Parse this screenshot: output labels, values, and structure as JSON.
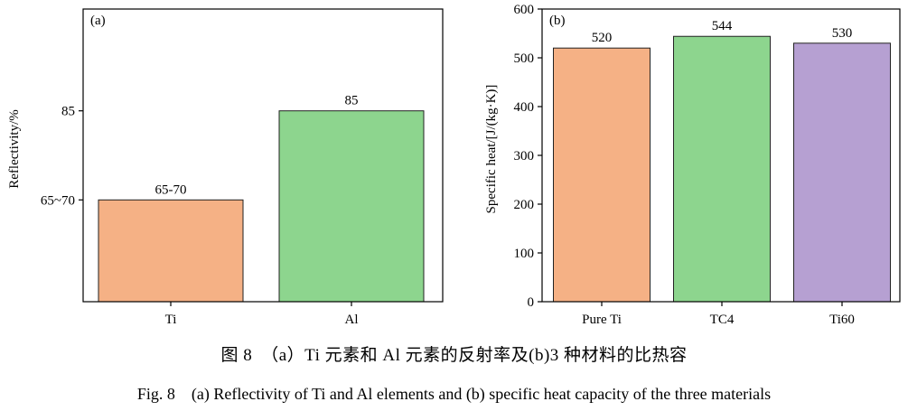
{
  "charts": [
    {
      "panel": "(a)",
      "ylabel": "Reflectivity/%",
      "ytick_labels": [
        "65~70",
        "85"
      ],
      "chart_data": {
        "type": "bar",
        "categories": [
          "Ti",
          "Al"
        ],
        "values": [
          67.5,
          85
        ],
        "value_labels": [
          "65-70",
          "85"
        ],
        "colors": [
          "#F5B185",
          "#8DD58E"
        ],
        "ytick_values": [
          67.5,
          85
        ],
        "ylim": [
          47.5,
          105
        ],
        "grid": false,
        "title": "",
        "xlabel": ""
      }
    },
    {
      "panel": "(b)",
      "ylabel": "Specific heat/[J/(kg·K)]",
      "chart_data": {
        "type": "bar",
        "categories": [
          "Pure Ti",
          "TC4",
          "Ti60"
        ],
        "values": [
          520,
          544,
          530
        ],
        "value_labels": [
          "520",
          "544",
          "530"
        ],
        "colors": [
          "#F5B185",
          "#8DD58E",
          "#B6A0D2"
        ],
        "ytick_values": [
          0,
          100,
          200,
          300,
          400,
          500,
          600
        ],
        "ylim": [
          0,
          600
        ],
        "grid": false,
        "title": "",
        "xlabel": ""
      }
    }
  ],
  "caption": {
    "chinese": "图 8　（a）Ti 元素和 Al 元素的反射率及(b)3 种材料的比热容",
    "english": "Fig. 8　(a) Reflectivity of Ti and Al elements and (b) specific heat capacity of the three materials"
  }
}
